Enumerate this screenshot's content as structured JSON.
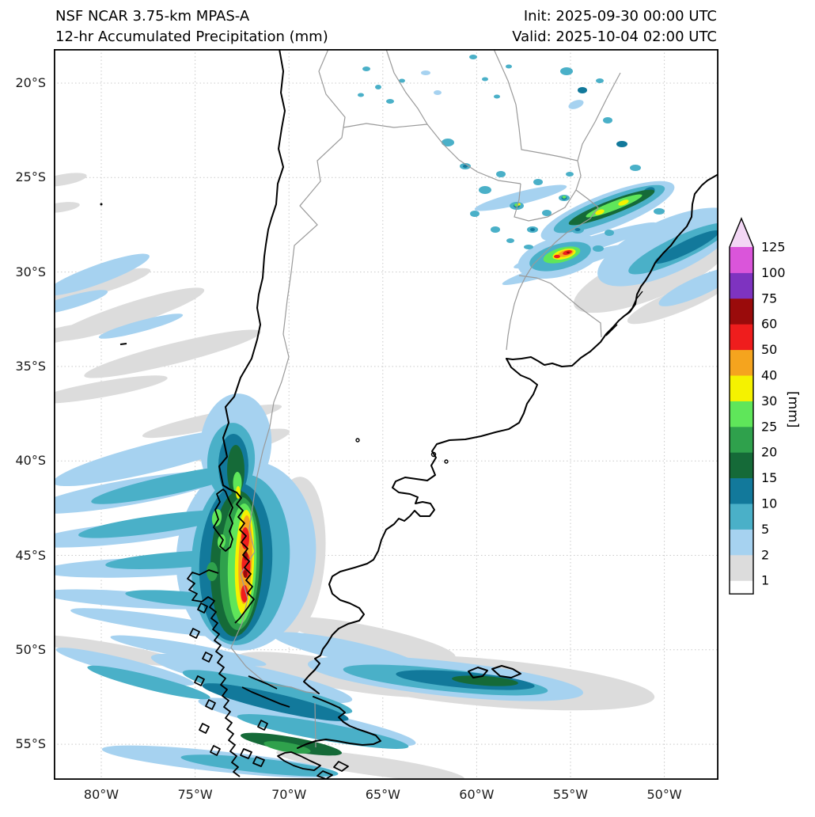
{
  "header": {
    "model_line": "NSF NCAR 3.75-km MPAS-A",
    "product_line": "12-hr Accumulated Precipitation (mm)",
    "init_line": "Init: 2025-09-30 00:00 UTC",
    "valid_line": "Valid: 2025-10-04 02:00 UTC"
  },
  "axes": {
    "y_ticks": [
      "20°S",
      "25°S",
      "30°S",
      "35°S",
      "40°S",
      "45°S",
      "50°S",
      "55°S"
    ],
    "x_ticks": [
      "80°W",
      "75°W",
      "70°W",
      "65°W",
      "60°W",
      "55°W",
      "50°W"
    ]
  },
  "colorbar": {
    "unit_label": "[mm]",
    "levels": [
      "1",
      "2",
      "5",
      "10",
      "15",
      "20",
      "25",
      "30",
      "40",
      "50",
      "60",
      "75",
      "100",
      "125"
    ],
    "segment_colors": [
      "#dcdcdc",
      "#a6d2f0",
      "#4ab0c8",
      "#12799b",
      "#156a38",
      "#2fa14c",
      "#5fe65a",
      "#f5f200",
      "#f5a41e",
      "#ef1d1d",
      "#9a0b0b",
      "#7e33c0",
      "#da55da"
    ],
    "under_color": "#ffffff",
    "over_color": "#f3d7f5",
    "outline_color": "#000000"
  },
  "map": {
    "precip_palette": {
      "1": "#dcdcdc",
      "2": "#a6d2f0",
      "5": "#4ab0c8",
      "10": "#12799b",
      "15": "#156a38",
      "20": "#2fa14c",
      "25": "#5fe65a",
      "30": "#f5f200",
      "40": "#f5a41e",
      "50": "#ef1d1d",
      "60": "#9a0b0b",
      "75": "#7e33c0",
      "100": "#da55da",
      "125": "#f3d7f5"
    }
  }
}
